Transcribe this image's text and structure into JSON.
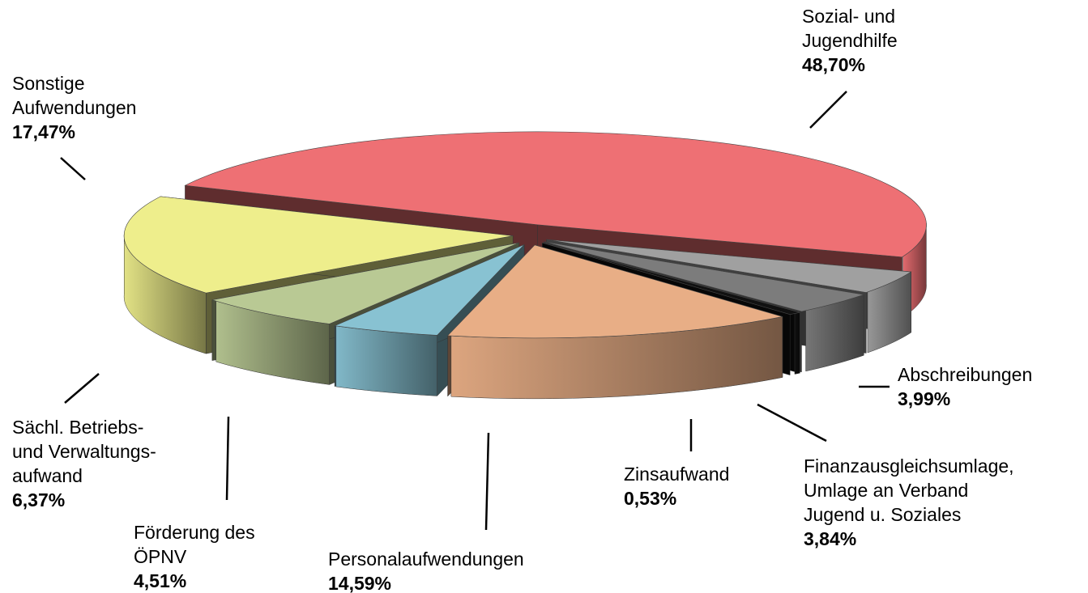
{
  "chart_data": {
    "type": "pie",
    "categories": [
      [
        "Sozial- und",
        "Jugendhilfe"
      ],
      [
        "Abschreibungen"
      ],
      [
        "Finanzausgleichsumlage,",
        "Umlage an Verband",
        "Jugend u. Soziales"
      ],
      [
        "Zinsaufwand"
      ],
      [
        "Personalaufwendungen"
      ],
      [
        "Förderung des",
        "ÖPNV"
      ],
      [
        "Sächl. Betriebs-",
        "und Verwaltungs-",
        "aufwand"
      ],
      [
        "Sonstige",
        "Aufwendungen"
      ]
    ],
    "values": [
      48.7,
      3.99,
      3.84,
      0.53,
      14.59,
      4.51,
      6.37,
      17.47
    ],
    "value_labels": [
      "48,70%",
      "3,99%",
      "3,84%",
      "0,53%",
      "14,59%",
      "4,51%",
      "6,37%",
      "17,47%"
    ],
    "colors": [
      "#ee7074",
      "#a0a0a0",
      "#7c7c7c",
      "#111111",
      "#e8ae86",
      "#88c2d2",
      "#b9c994",
      "#eeee8c"
    ]
  }
}
